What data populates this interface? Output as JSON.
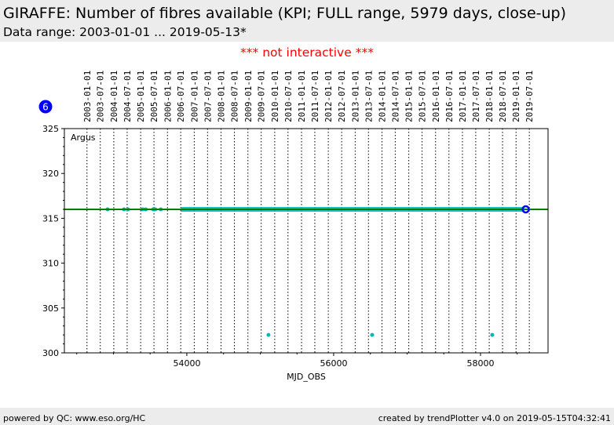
{
  "header": {
    "title": "GIRAFFE: Number of fibres available (KPI; FULL range, 5979 days, close-up)",
    "subtitle": "Data range: 2003-01-01 ... 2019-05-13*"
  },
  "notice": "*** not interactive ***",
  "badge": "6",
  "footer": {
    "left": "powered by QC: www.eso.org/HC",
    "right": "created by trendPlotter v4.0 on 2019-05-15T04:32:41"
  },
  "colors": {
    "points": "#00b8b8",
    "reference": "#008000",
    "last": "#0000ff"
  },
  "chart_data": {
    "type": "scatter",
    "title": "Number of fibres available",
    "xlabel": "MJD_OBS",
    "ylabel": "",
    "xlim": [
      52332,
      58920
    ],
    "ylim": [
      300,
      325
    ],
    "xticks": [
      54000,
      56000,
      58000
    ],
    "yticks": [
      300,
      305,
      310,
      315,
      320,
      325
    ],
    "date_labels": [
      "2003-01-01",
      "2003-07-01",
      "2004-01-01",
      "2004-07-01",
      "2005-01-01",
      "2005-07-01",
      "2006-01-01",
      "2006-07-01",
      "2007-01-01",
      "2007-07-01",
      "2008-01-01",
      "2008-07-01",
      "2009-01-01",
      "2009-07-01",
      "2010-01-01",
      "2010-07-01",
      "2011-01-01",
      "2011-07-01",
      "2012-01-01",
      "2012-07-01",
      "2013-01-01",
      "2013-07-01",
      "2014-01-01",
      "2014-07-01",
      "2015-01-01",
      "2015-07-01",
      "2016-01-01",
      "2016-07-01",
      "2017-01-01",
      "2017-07-01",
      "2018-01-01",
      "2018-07-01",
      "2019-01-01",
      "2019-07-01"
    ],
    "series_label": "Argus",
    "reference_value": 316,
    "continuous_range": {
      "x": [
        53925,
        58600
      ],
      "y": 316
    },
    "points": [
      [
        52920,
        316
      ],
      [
        53145,
        316
      ],
      [
        53198,
        316
      ],
      [
        53400,
        316
      ],
      [
        53440,
        316
      ],
      [
        53540,
        316
      ],
      [
        53570,
        316
      ],
      [
        53645,
        316
      ],
      [
        55112,
        302
      ],
      [
        56524,
        302
      ],
      [
        58160,
        302
      ]
    ],
    "last_point": [
      58616,
      316
    ]
  }
}
